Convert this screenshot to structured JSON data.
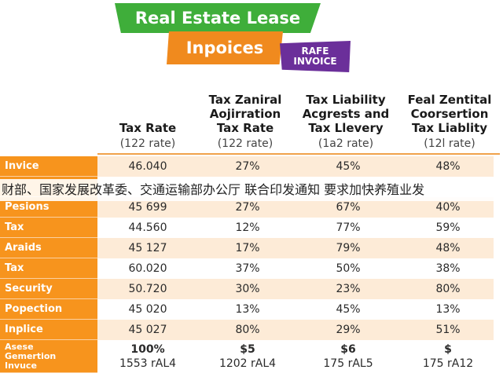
{
  "title": {
    "line1": "Real Estate Lease",
    "line2": "Inpoices",
    "badge_line1": "RAFE",
    "badge_line2": "INVOICE"
  },
  "columns": [
    {
      "title": "Tax Rate",
      "sub": "(122 rate)"
    },
    {
      "title": "Tax Zaniral Aojirration Tax Rate",
      "sub": "(122 rate)"
    },
    {
      "title": "Tax Liability Acgrests and Tax Llevery",
      "sub": "(1a2 rate)"
    },
    {
      "title": "Feal Zentital Coorsertion Tax Liablity",
      "sub": "(12l rate)"
    }
  ],
  "rows": [
    {
      "label": "Invice",
      "values": [
        "46.040",
        "27%",
        "45%",
        "48%"
      ]
    },
    {
      "label": "",
      "values": [
        "",
        "",
        "",
        ""
      ]
    },
    {
      "label": "Pesions",
      "values": [
        "45 699",
        "27%",
        "67%",
        "40%"
      ]
    },
    {
      "label": "Tax",
      "values": [
        "44.560",
        "12%",
        "77%",
        "59%"
      ]
    },
    {
      "label": "Araids",
      "values": [
        "45 127",
        "17%",
        "79%",
        "48%"
      ]
    },
    {
      "label": "Tax",
      "values": [
        "60.020",
        "37%",
        "50%",
        "38%"
      ]
    },
    {
      "label": "Security",
      "values": [
        "50.720",
        "30%",
        "23%",
        "80%"
      ]
    },
    {
      "label": "Popection",
      "values": [
        "45 020",
        "13%",
        "45%",
        "13%"
      ]
    },
    {
      "label": "Inplice",
      "values": [
        "45 027",
        "80%",
        "29%",
        "51%"
      ]
    }
  ],
  "last_row": {
    "label_lines": [
      "Asese",
      "Gemertion",
      "Invuce"
    ],
    "top": [
      "100%",
      "$5",
      "$6",
      "$"
    ],
    "bottom": [
      "1553 rAL4",
      "1202 rAL4",
      "175 rAL5",
      "175 rA12"
    ]
  },
  "overlay_text": "财部、国家发展改革委、交通运输部办公厅 联合印发通知 要求加快养殖业发"
}
